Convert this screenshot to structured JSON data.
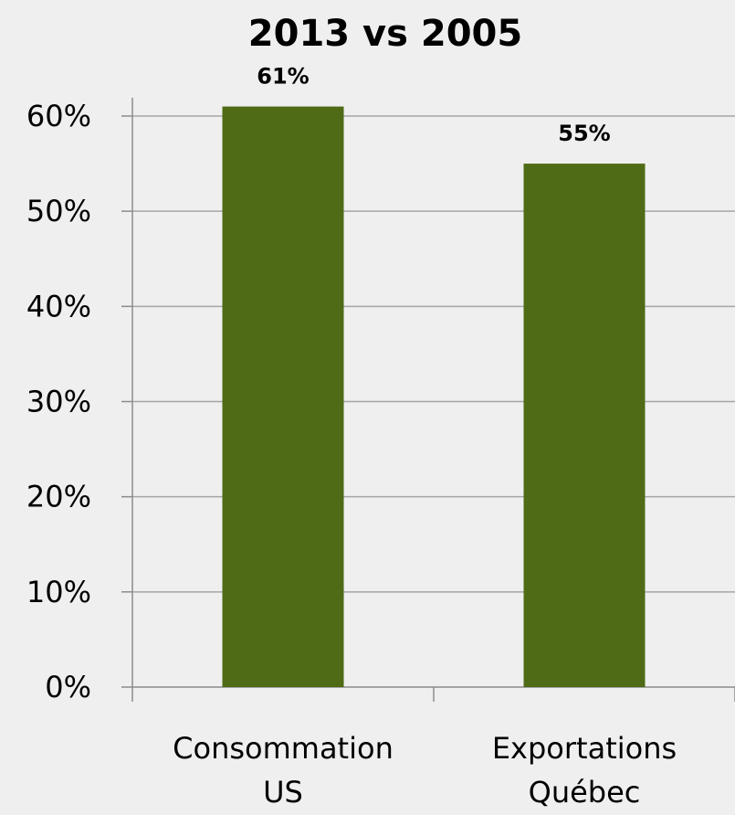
{
  "chart_data": {
    "type": "bar",
    "title": "2013 vs 2005",
    "categories": [
      [
        "Consommation",
        "US"
      ],
      [
        "Exportations",
        "Québec"
      ]
    ],
    "values": [
      61,
      55
    ],
    "data_labels": [
      "61%",
      "55%"
    ],
    "ylim": [
      0,
      60
    ],
    "yticks": [
      0,
      10,
      20,
      30,
      40,
      50,
      60
    ],
    "ytick_labels": [
      "0%",
      "10%",
      "20%",
      "30%",
      "40%",
      "50%",
      "60%"
    ],
    "grid": true,
    "bar_color": "#4f6b16",
    "background": "#efefef"
  }
}
